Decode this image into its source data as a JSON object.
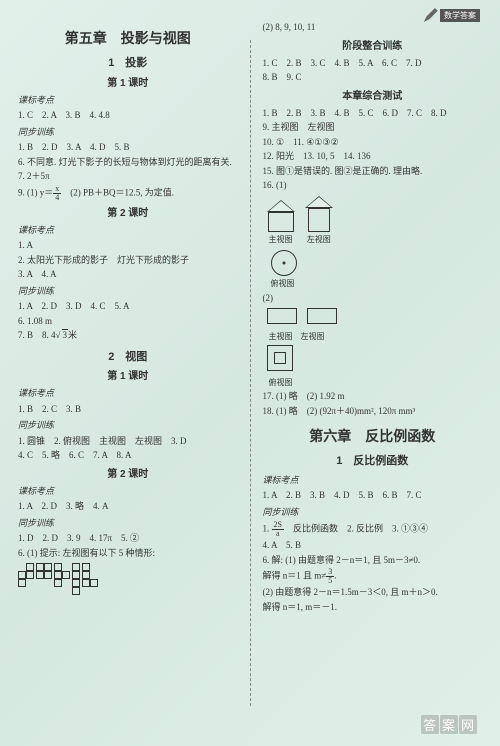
{
  "header": {
    "tag": "数学答案"
  },
  "left": {
    "chapter": "第五章　投影与视图",
    "s1": {
      "title": "1　投影",
      "p1": {
        "title": "第 1 课时",
        "kbLabel": "课标考点",
        "kb": "1. C　2. A　3. B　4. 4.8",
        "tbLabel": "同步训练",
        "tb1": "1. B　2. D　3. A　4. D　5. B",
        "tb2": "6. 不同意. 灯光下影子的长短与物体到灯光的距离有关.",
        "tb3": "7. 2＋5π",
        "tb4a": "9. (1) y＝",
        "tb4n": "x",
        "tb4d": "4",
        "tb4b": "　(2) PB＋BQ＝12.5, 为定值."
      },
      "p2": {
        "title": "第 2 课时",
        "kbLabel": "课标考点",
        "kb1": "1. A",
        "kb2": "2. 太阳光下形成的影子　灯光下形成的影子",
        "kb3": "3. A　4. A",
        "tbLabel": "同步训练",
        "tb1": "1. A　2. D　3. D　4. C　5. A",
        "tb2": "6. 1.08 m",
        "tb3a": "7. B　8. 4",
        "tb3b": "3",
        "tb3c": "米"
      }
    },
    "s2": {
      "title": "2　视图",
      "p1": {
        "title": "第 1 课时",
        "kbLabel": "课标考点",
        "kb": "1. B　2. C　3. B",
        "tbLabel": "同步训练",
        "tb1": "1. 圆锥　2. 俯视图　主视图　左视图　3. D",
        "tb2": "4. C　5. 略　6. C　7. A　8. A"
      },
      "p2": {
        "title": "第 2 课时",
        "kbLabel": "课标考点",
        "kb": "1. A　2. D　3. 略　4. A",
        "tbLabel": "同步训练",
        "tb1": "1. D　2. D　3. 9　4. 17π　5. ②",
        "tb2": "6. (1) 提示: 左视图有以下 5 种情形:"
      }
    }
  },
  "right": {
    "top": "(2) 8, 9, 10, 11",
    "stage": {
      "title": "阶段整合训练",
      "l1": "1. C　2. B　3. C　4. B　5. A　6. C　7. D",
      "l2": "8. B　9. C"
    },
    "test": {
      "title": "本章综合测试",
      "l1": "1. B　2. B　3. B　4. B　5. C　6. D　7. C　8. D",
      "l2": "9. 主视图　左视图",
      "l3": "10. ①　11. ④①③②",
      "l4": "12. 阳光　13. 10, 5　14. 136",
      "l5": "15. 图①是错误的. 图②是正确的. 理由略.",
      "l6": "16. (1)",
      "cap_main": "主视图",
      "cap_left": "左视图",
      "cap_top": "俯视图",
      "l7": "(2)",
      "l8": "17. (1) 略　(2) 1.92 m",
      "l9": "18. (1) 略　(2) (92π＋40)mm², 120π mm³"
    },
    "ch6": {
      "title": "第六章　反比例函数",
      "s1": {
        "title": "1　反比例函数",
        "kbLabel": "课标考点",
        "kb": "1. A　2. B　3. B　4. D　5. B　6. B　7. C",
        "tbLabel": "同步训练",
        "tb1a": "1. ",
        "tb1n": "2S",
        "tb1d": "a",
        "tb1b": "　反比例函数　2. 反比例　3. ①③④",
        "tb2": "4. A　5. B",
        "tb3": "6. 解: (1) 由题意得 2－n＝1, 且 5m－3≠0.",
        "tb4a": "解得 n＝1 且 m≠",
        "tb4n": "3",
        "tb4d": "5",
        "tb4b": ".",
        "tb5": "(2) 由题意得 2－n＝1.5m－3＜0, 且 m＋n＞0.",
        "tb6": "解得 n＝1, m＝－1."
      }
    }
  },
  "watermark": {
    "a": "答",
    "b": "案",
    "c": "网"
  }
}
